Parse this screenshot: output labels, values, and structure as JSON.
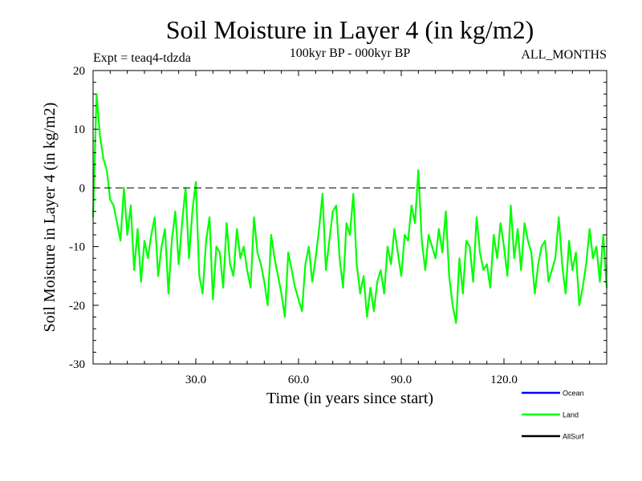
{
  "chart_data": {
    "type": "line",
    "title": "Soil Moisture in Layer 4 (in kg/m2)",
    "subtitle_left": "Expt = teaq4-tdzda",
    "subtitle_center": "100kyr BP - 000kyr BP",
    "subtitle_right": "ALL_MONTHS",
    "xlabel": "Time (in years since start)",
    "ylabel": "Soil Moisture in Layer 4 (in kg/m2)",
    "xlim": [
      0,
      150
    ],
    "ylim": [
      -30,
      20
    ],
    "xticks": [
      30,
      60,
      90,
      120
    ],
    "xtick_labels": [
      "30.0",
      "60.0",
      "90.0",
      "120.0"
    ],
    "yticks": [
      -30,
      -20,
      -10,
      0,
      10,
      20
    ],
    "ytick_labels": [
      "-30",
      "-20",
      "-10",
      "0",
      "10",
      "20"
    ],
    "reference_line": {
      "y": 0,
      "style": "dashed"
    },
    "legend": {
      "placement": "bottom-right",
      "entries": [
        {
          "name": "Ocean",
          "color": "#0000ff"
        },
        {
          "name": "Land",
          "color": "#00ff00"
        },
        {
          "name": "AllSurf",
          "color": "#000000"
        }
      ]
    },
    "series": [
      {
        "name": "Land",
        "color": "#00ff00",
        "x": [
          0,
          1,
          2,
          3,
          4,
          5,
          6,
          7,
          8,
          9,
          10,
          11,
          12,
          13,
          14,
          15,
          16,
          17,
          18,
          19,
          20,
          21,
          22,
          23,
          24,
          25,
          26,
          27,
          28,
          29,
          30,
          31,
          32,
          33,
          34,
          35,
          36,
          37,
          38,
          39,
          40,
          41,
          42,
          43,
          44,
          45,
          46,
          47,
          48,
          49,
          50,
          51,
          52,
          53,
          54,
          55,
          56,
          57,
          58,
          59,
          60,
          61,
          62,
          63,
          64,
          65,
          66,
          67,
          68,
          69,
          70,
          71,
          72,
          73,
          74,
          75,
          76,
          77,
          78,
          79,
          80,
          81,
          82,
          83,
          84,
          85,
          86,
          87,
          88,
          89,
          90,
          91,
          92,
          93,
          94,
          95,
          96,
          97,
          98,
          99,
          100,
          101,
          102,
          103,
          104,
          105,
          106,
          107,
          108,
          109,
          110,
          111,
          112,
          113,
          114,
          115,
          116,
          117,
          118,
          119,
          120,
          121,
          122,
          123,
          124,
          125,
          126,
          127,
          128,
          129,
          130,
          131,
          132,
          133,
          134,
          135,
          136,
          137,
          138,
          139,
          140,
          141,
          142,
          143,
          144,
          145,
          146,
          147,
          148,
          149,
          150
        ],
        "values": [
          -5,
          16,
          9,
          5,
          3,
          -2,
          -3,
          -6,
          -9,
          0,
          -8,
          -3,
          -14,
          -7,
          -16,
          -9,
          -12,
          -8,
          -5,
          -15,
          -10,
          -7,
          -18,
          -9,
          -4,
          -13,
          -6,
          0,
          -12,
          -4,
          1,
          -15,
          -18,
          -9,
          -5,
          -19,
          -10,
          -11,
          -17,
          -6,
          -13,
          -15,
          -7,
          -12,
          -10,
          -14,
          -17,
          -5,
          -11,
          -13,
          -16,
          -20,
          -8,
          -12,
          -15,
          -18,
          -22,
          -11,
          -14,
          -17,
          -19,
          -21,
          -13,
          -10,
          -16,
          -12,
          -7,
          -1,
          -14,
          -9,
          -4,
          -3,
          -12,
          -17,
          -6,
          -8,
          -1,
          -13,
          -18,
          -15,
          -22,
          -17,
          -21,
          -16,
          -14,
          -18,
          -10,
          -13,
          -7,
          -11,
          -15,
          -8,
          -9,
          -3,
          -6,
          3,
          -9,
          -14,
          -8,
          -10,
          -12,
          -7,
          -11,
          -4,
          -15,
          -20,
          -23,
          -12,
          -18,
          -9,
          -10,
          -16,
          -5,
          -11,
          -14,
          -13,
          -17,
          -8,
          -12,
          -6,
          -10,
          -15,
          -3,
          -12,
          -7,
          -14,
          -6,
          -9,
          -11,
          -18,
          -13,
          -10,
          -9,
          -16,
          -14,
          -12,
          -5,
          -13,
          -18,
          -9,
          -14,
          -11,
          -20,
          -17,
          -13,
          -7,
          -12,
          -10,
          -16,
          -8,
          -17
        ]
      }
    ]
  }
}
